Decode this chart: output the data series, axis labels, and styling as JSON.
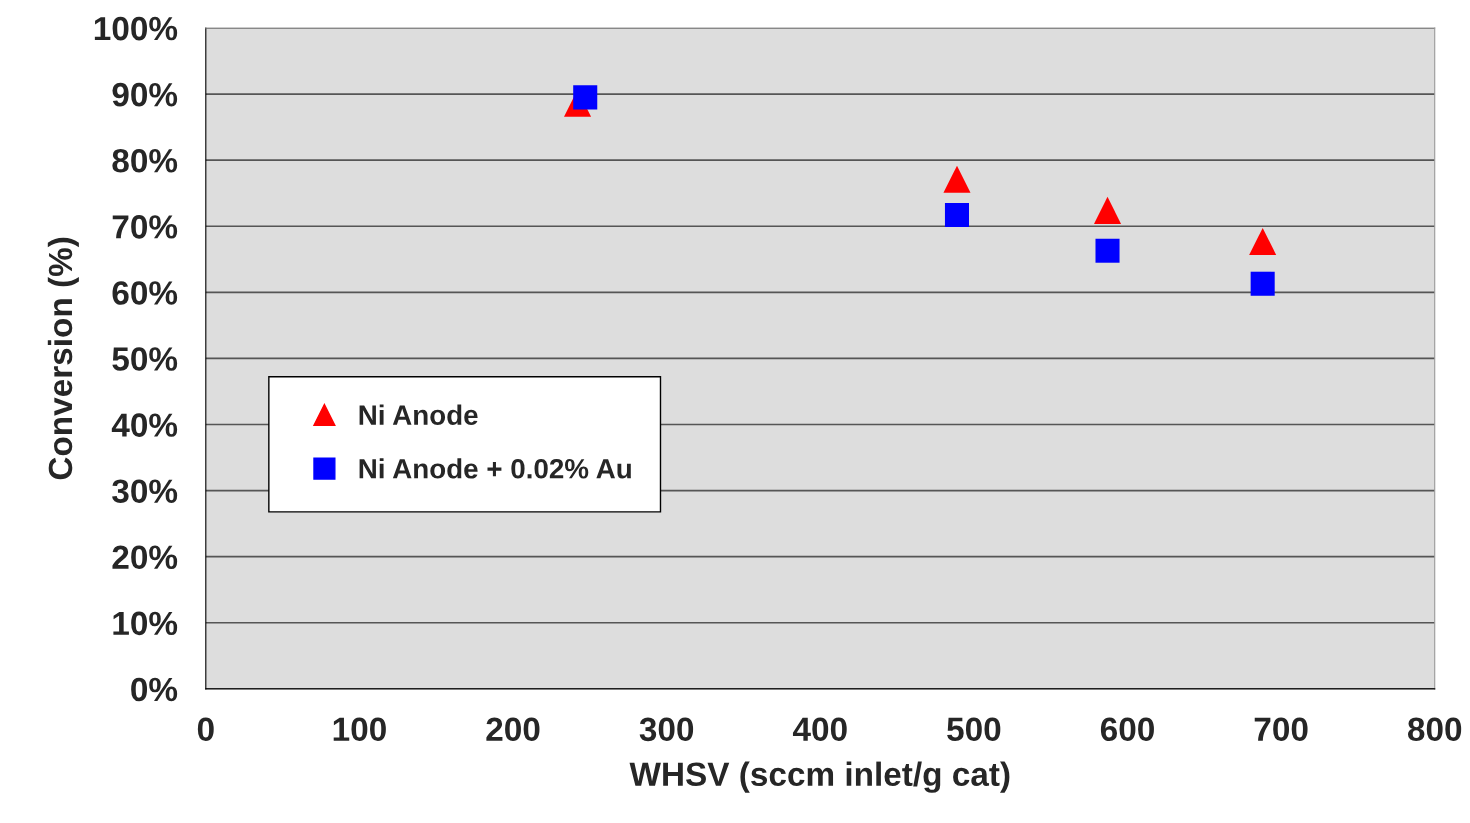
{
  "chart_data": {
    "type": "scatter",
    "xlabel": "WHSV (sccm inlet/g cat)",
    "ylabel": "Conversion (%)",
    "series": [
      {
        "name": "Ni Anode",
        "color": "#ff0000",
        "marker": "triangle",
        "x": [
          242,
          489,
          587,
          688
        ],
        "values": [
          88.6,
          77.1,
          72.4,
          67.7
        ]
      },
      {
        "name": "Ni Anode + 0.02% Au",
        "color": "#0000ff",
        "marker": "square",
        "x": [
          247,
          489,
          587,
          688
        ],
        "values": [
          89.5,
          71.7,
          66.3,
          61.3
        ]
      }
    ],
    "xlim": [
      0,
      800
    ],
    "xticks": [
      0,
      100,
      200,
      300,
      400,
      500,
      600,
      700,
      800
    ],
    "ylim": [
      0,
      100
    ],
    "yticks": [
      {
        "value": 0,
        "label": "0%"
      },
      {
        "value": 10,
        "label": "10%"
      },
      {
        "value": 20,
        "label": "20%"
      },
      {
        "value": 30,
        "label": "30%"
      },
      {
        "value": 40,
        "label": "40%"
      },
      {
        "value": 50,
        "label": "50%"
      },
      {
        "value": 60,
        "label": "60%"
      },
      {
        "value": 70,
        "label": "70%"
      },
      {
        "value": 80,
        "label": "80%"
      },
      {
        "value": 90,
        "label": "90%"
      },
      {
        "value": 100,
        "label": "100%"
      }
    ],
    "grid": "y",
    "legend": "left"
  }
}
